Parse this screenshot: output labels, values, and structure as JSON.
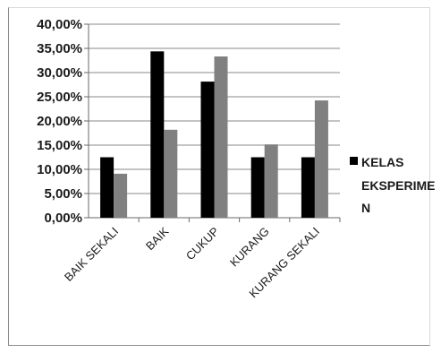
{
  "chart_data": {
    "type": "bar",
    "categories": [
      "BAIK SEKALI",
      "BAIK",
      "CUKUP",
      "KURANG",
      "KURANG SEKALI"
    ],
    "series": [
      {
        "name": "KELAS EKSPERIMEN",
        "values": [
          12.5,
          34.38,
          28.13,
          12.5,
          12.5
        ],
        "color": "#000000"
      },
      {
        "values": [
          9.09,
          18.18,
          33.33,
          15.15,
          24.24
        ],
        "color": "#808080"
      }
    ],
    "ylim": [
      0,
      40
    ],
    "y_ticks": [
      "0,00%",
      "5,00%",
      "10,00%",
      "15,00%",
      "20,00%",
      "25,00%",
      "30,00%",
      "35,00%",
      "40,00%"
    ],
    "grid": "horizontal",
    "legend": {
      "placement": "right",
      "lines": [
        "KELAS",
        "EKSPERIME",
        "N"
      ]
    },
    "title": "",
    "xlabel": "",
    "ylabel": ""
  }
}
